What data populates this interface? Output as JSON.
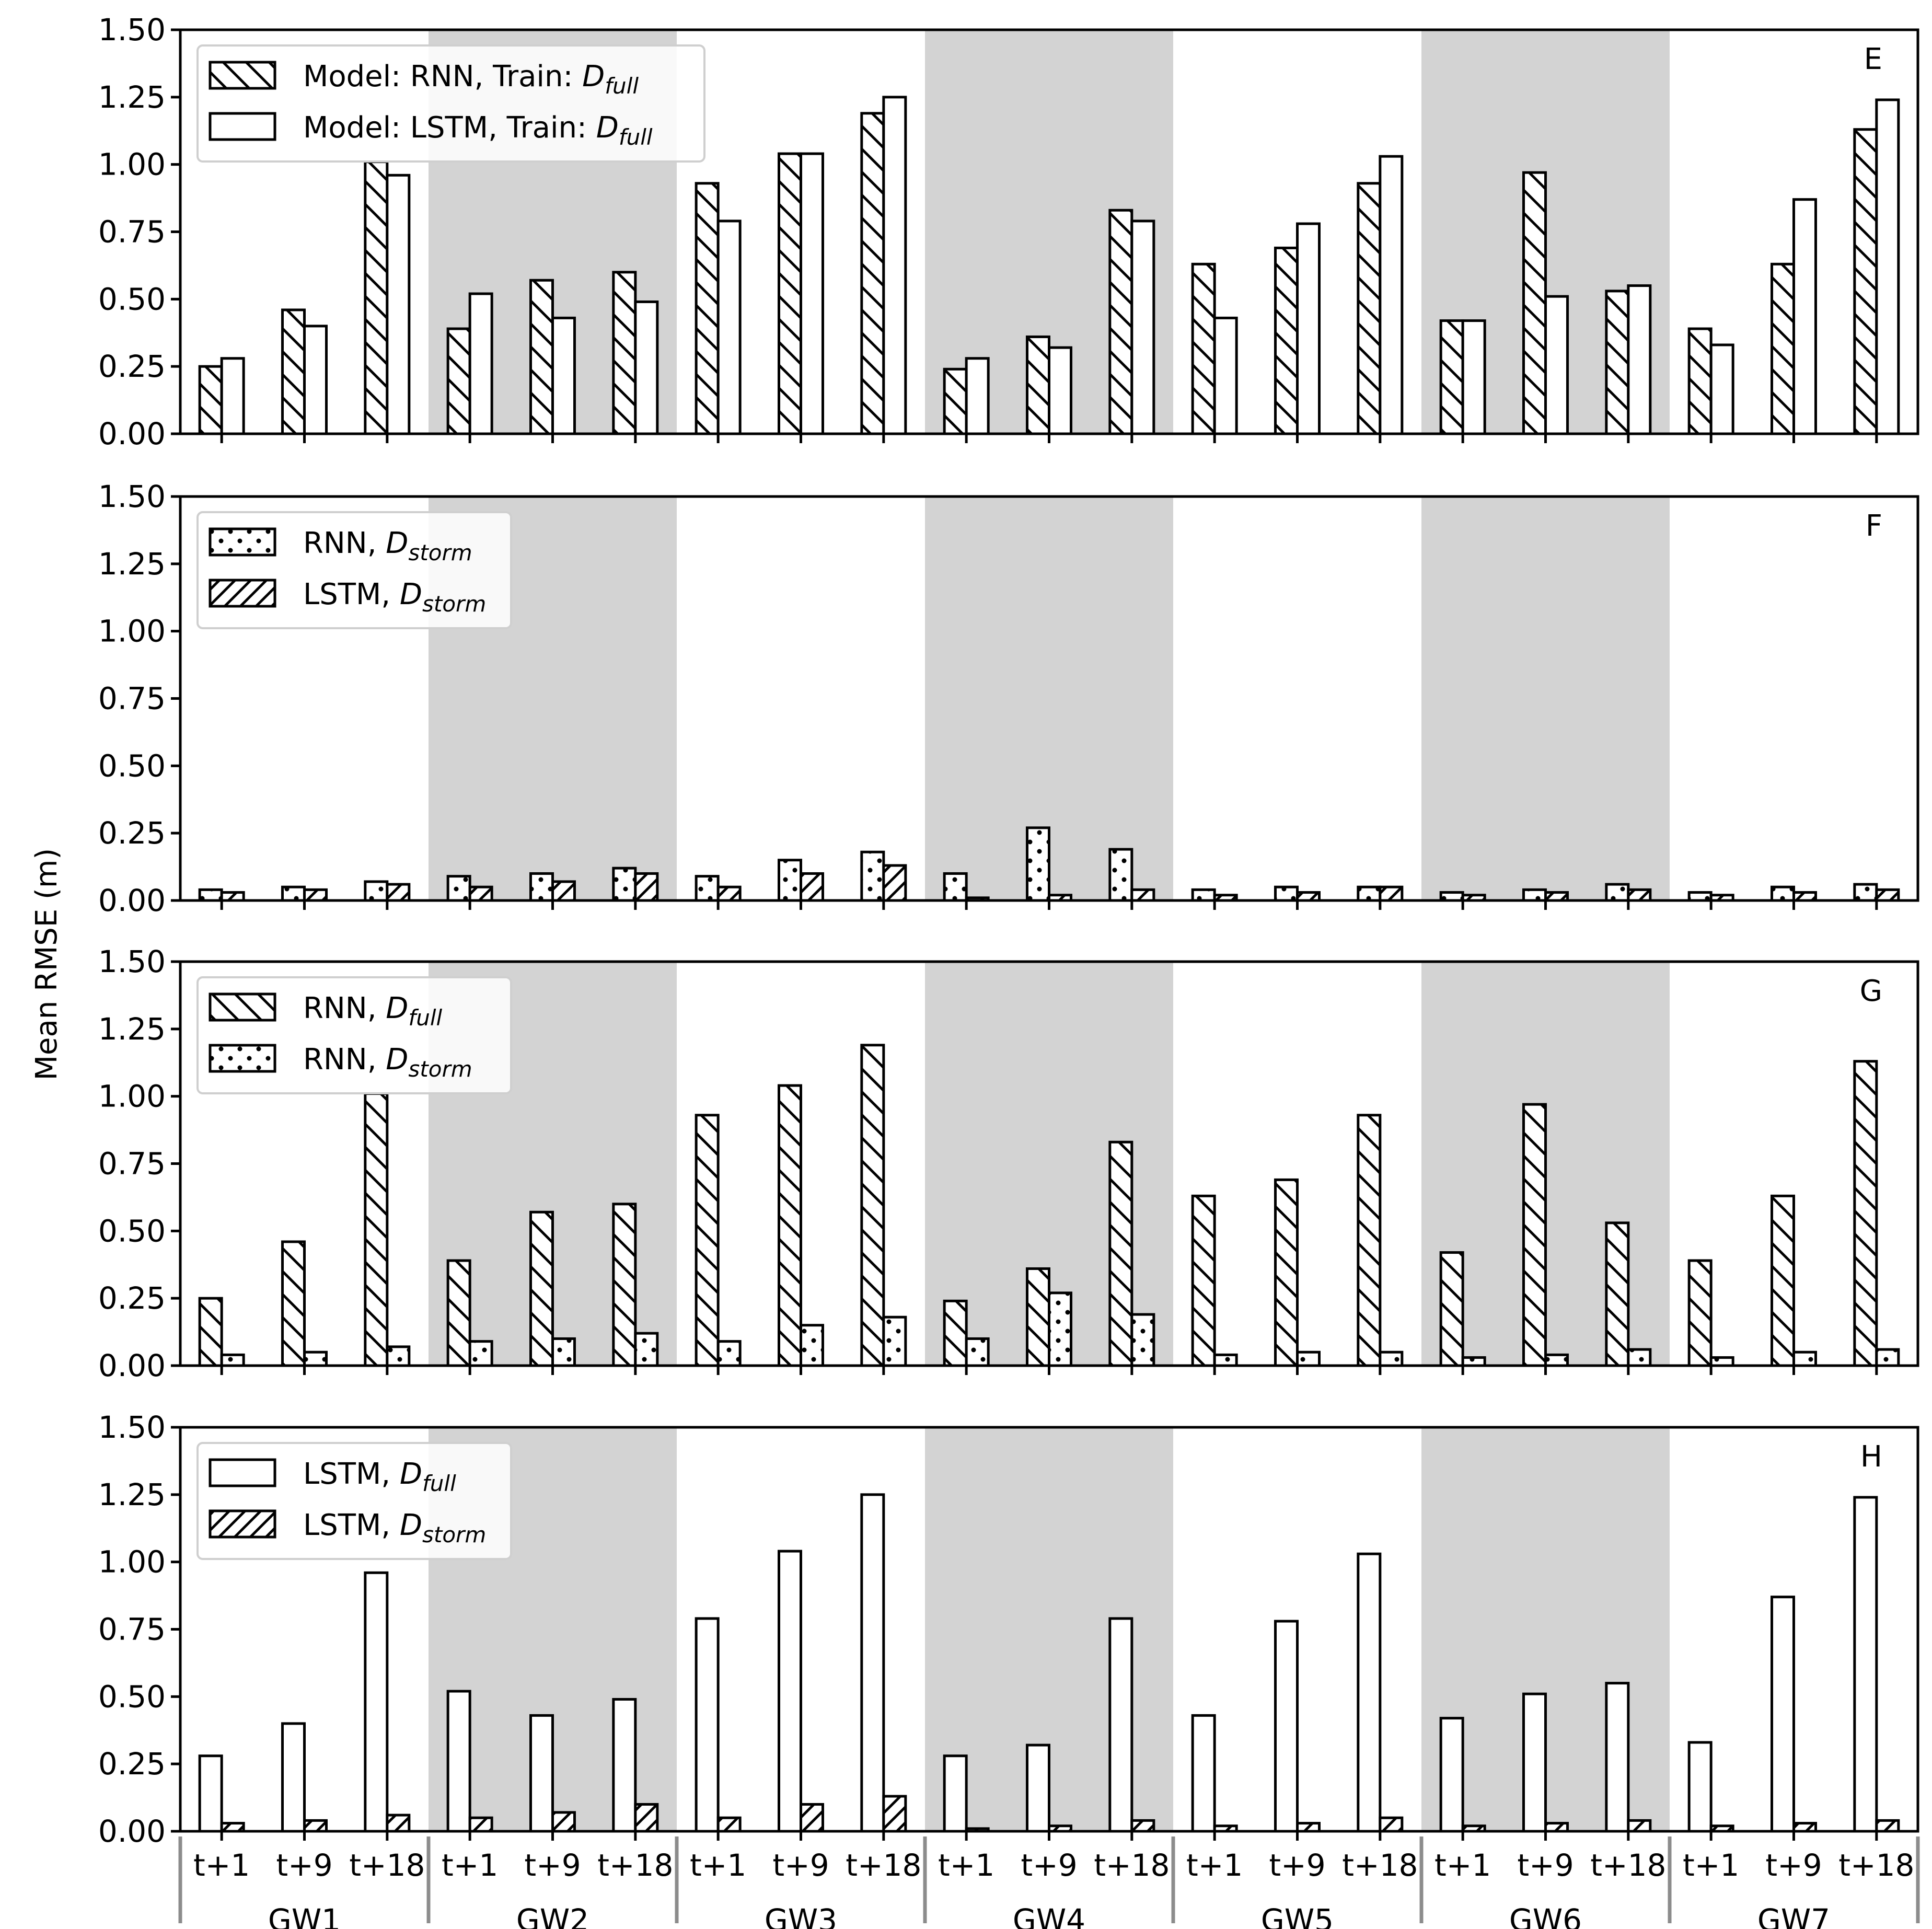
{
  "figure": {
    "ylabel": "Mean RMSE (m)",
    "yticks": [
      "0.00",
      "0.25",
      "0.50",
      "0.75",
      "1.00",
      "1.25",
      "1.50"
    ],
    "ylim": [
      0,
      1.5
    ],
    "shaded_groups": [
      "GW2",
      "GW4",
      "GW6"
    ],
    "xtick_labels": [
      "t+1",
      "t+9",
      "t+18"
    ],
    "groups": [
      "GW1",
      "GW2",
      "GW3",
      "GW4",
      "GW5",
      "GW6",
      "GW7"
    ]
  },
  "chart_data": [
    {
      "type": "bar",
      "panel": "E",
      "ylabel": "Mean RMSE (m)",
      "ylim": [
        0,
        1.5
      ],
      "legend": [
        {
          "pattern": "backslash",
          "prefix": "Model: RNN, Train: ",
          "d": "D",
          "sub": "full"
        },
        {
          "pattern": "none",
          "prefix": "Model: LSTM, Train: ",
          "d": "D",
          "sub": "full"
        }
      ],
      "categories": [
        "GW1 t+1",
        "GW1 t+9",
        "GW1 t+18",
        "GW2 t+1",
        "GW2 t+9",
        "GW2 t+18",
        "GW3 t+1",
        "GW3 t+9",
        "GW3 t+18",
        "GW4 t+1",
        "GW4 t+9",
        "GW4 t+18",
        "GW5 t+1",
        "GW5 t+9",
        "GW5 t+18",
        "GW6 t+1",
        "GW6 t+9",
        "GW6 t+18",
        "GW7 t+1",
        "GW7 t+9",
        "GW7 t+18"
      ],
      "series": [
        {
          "name": "Model: RNN, Train: D_full",
          "pattern": "backslash",
          "values": [
            0.25,
            0.46,
            1.01,
            0.39,
            0.57,
            0.6,
            0.93,
            1.04,
            1.19,
            0.24,
            0.36,
            0.83,
            0.63,
            0.69,
            0.93,
            0.42,
            0.97,
            0.53,
            0.39,
            0.63,
            1.13
          ]
        },
        {
          "name": "Model: LSTM, Train: D_full",
          "pattern": "none",
          "values": [
            0.28,
            0.4,
            0.96,
            0.52,
            0.43,
            0.49,
            0.79,
            1.04,
            1.25,
            0.28,
            0.32,
            0.79,
            0.43,
            0.78,
            1.03,
            0.42,
            0.51,
            0.55,
            0.33,
            0.87,
            1.24
          ]
        }
      ]
    },
    {
      "type": "bar",
      "panel": "F",
      "ylabel": "Mean RMSE (m)",
      "ylim": [
        0,
        1.5
      ],
      "legend": [
        {
          "pattern": "dots",
          "prefix": "RNN, ",
          "d": "D",
          "sub": "storm"
        },
        {
          "pattern": "slash",
          "prefix": "LSTM, ",
          "d": "D",
          "sub": "storm"
        }
      ],
      "categories": [
        "GW1 t+1",
        "GW1 t+9",
        "GW1 t+18",
        "GW2 t+1",
        "GW2 t+9",
        "GW2 t+18",
        "GW3 t+1",
        "GW3 t+9",
        "GW3 t+18",
        "GW4 t+1",
        "GW4 t+9",
        "GW4 t+18",
        "GW5 t+1",
        "GW5 t+9",
        "GW5 t+18",
        "GW6 t+1",
        "GW6 t+9",
        "GW6 t+18",
        "GW7 t+1",
        "GW7 t+9",
        "GW7 t+18"
      ],
      "series": [
        {
          "name": "RNN, D_storm",
          "pattern": "dots",
          "values": [
            0.04,
            0.05,
            0.07,
            0.09,
            0.1,
            0.12,
            0.09,
            0.15,
            0.18,
            0.1,
            0.27,
            0.19,
            0.04,
            0.05,
            0.05,
            0.03,
            0.04,
            0.06,
            0.03,
            0.05,
            0.06
          ]
        },
        {
          "name": "LSTM, D_storm",
          "pattern": "slash",
          "values": [
            0.03,
            0.04,
            0.06,
            0.05,
            0.07,
            0.1,
            0.05,
            0.1,
            0.13,
            0.01,
            0.02,
            0.04,
            0.02,
            0.03,
            0.05,
            0.02,
            0.03,
            0.04,
            0.02,
            0.03,
            0.04
          ]
        }
      ]
    },
    {
      "type": "bar",
      "panel": "G",
      "ylabel": "Mean RMSE (m)",
      "ylim": [
        0,
        1.5
      ],
      "legend": [
        {
          "pattern": "backslash",
          "prefix": "RNN, ",
          "d": "D",
          "sub": "full"
        },
        {
          "pattern": "dots",
          "prefix": "RNN, ",
          "d": "D",
          "sub": "storm"
        }
      ],
      "categories": [
        "GW1 t+1",
        "GW1 t+9",
        "GW1 t+18",
        "GW2 t+1",
        "GW2 t+9",
        "GW2 t+18",
        "GW3 t+1",
        "GW3 t+9",
        "GW3 t+18",
        "GW4 t+1",
        "GW4 t+9",
        "GW4 t+18",
        "GW5 t+1",
        "GW5 t+9",
        "GW5 t+18",
        "GW6 t+1",
        "GW6 t+9",
        "GW6 t+18",
        "GW7 t+1",
        "GW7 t+9",
        "GW7 t+18"
      ],
      "series": [
        {
          "name": "RNN, D_full",
          "pattern": "backslash",
          "values": [
            0.25,
            0.46,
            1.01,
            0.39,
            0.57,
            0.6,
            0.93,
            1.04,
            1.19,
            0.24,
            0.36,
            0.83,
            0.63,
            0.69,
            0.93,
            0.42,
            0.97,
            0.53,
            0.39,
            0.63,
            1.13
          ]
        },
        {
          "name": "RNN, D_storm",
          "pattern": "dots",
          "values": [
            0.04,
            0.05,
            0.07,
            0.09,
            0.1,
            0.12,
            0.09,
            0.15,
            0.18,
            0.1,
            0.27,
            0.19,
            0.04,
            0.05,
            0.05,
            0.03,
            0.04,
            0.06,
            0.03,
            0.05,
            0.06
          ]
        }
      ]
    },
    {
      "type": "bar",
      "panel": "H",
      "ylabel": "Mean RMSE (m)",
      "ylim": [
        0,
        1.5
      ],
      "legend": [
        {
          "pattern": "none",
          "prefix": "LSTM, ",
          "d": "D",
          "sub": "full"
        },
        {
          "pattern": "slash",
          "prefix": "LSTM, ",
          "d": "D",
          "sub": "storm"
        }
      ],
      "categories": [
        "GW1 t+1",
        "GW1 t+9",
        "GW1 t+18",
        "GW2 t+1",
        "GW2 t+9",
        "GW2 t+18",
        "GW3 t+1",
        "GW3 t+9",
        "GW3 t+18",
        "GW4 t+1",
        "GW4 t+9",
        "GW4 t+18",
        "GW5 t+1",
        "GW5 t+9",
        "GW5 t+18",
        "GW6 t+1",
        "GW6 t+9",
        "GW6 t+18",
        "GW7 t+1",
        "GW7 t+9",
        "GW7 t+18"
      ],
      "series": [
        {
          "name": "LSTM, D_full",
          "pattern": "none",
          "values": [
            0.28,
            0.4,
            0.96,
            0.52,
            0.43,
            0.49,
            0.79,
            1.04,
            1.25,
            0.28,
            0.32,
            0.79,
            0.43,
            0.78,
            1.03,
            0.42,
            0.51,
            0.55,
            0.33,
            0.87,
            1.24
          ]
        },
        {
          "name": "LSTM, D_storm",
          "pattern": "slash",
          "values": [
            0.03,
            0.04,
            0.06,
            0.05,
            0.07,
            0.1,
            0.05,
            0.1,
            0.13,
            0.01,
            0.02,
            0.04,
            0.02,
            0.03,
            0.05,
            0.02,
            0.03,
            0.04,
            0.02,
            0.03,
            0.04
          ]
        }
      ]
    }
  ]
}
